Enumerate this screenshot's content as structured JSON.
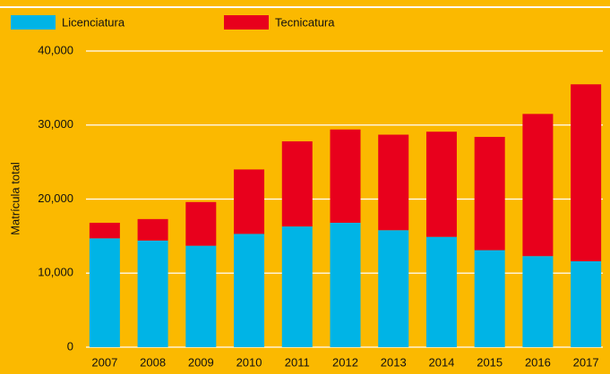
{
  "chart_data": {
    "type": "stacked_bar",
    "ylabel": "Matrícula total",
    "categories": [
      "2007",
      "2008",
      "2009",
      "2010",
      "2011",
      "2012",
      "2013",
      "2014",
      "2015",
      "2016",
      "2017"
    ],
    "series": [
      {
        "name": "Licenciatura",
        "color": "#00b4e6",
        "values": [
          14700,
          14400,
          13700,
          15300,
          16300,
          16800,
          15800,
          14900,
          13100,
          12300,
          11600
        ]
      },
      {
        "name": "Tecnicatura",
        "color": "#e8001c",
        "values": [
          2100,
          2900,
          5900,
          8700,
          11500,
          12600,
          12900,
          14200,
          15300,
          19200,
          23900
        ]
      }
    ],
    "ylim": [
      0,
      40000
    ],
    "yticks": [
      0,
      {
        "value": 10000,
        "label": "10,000"
      },
      {
        "value": 20000,
        "label": "20,000"
      },
      {
        "value": 30000,
        "label": "30,000"
      },
      {
        "value": 40000,
        "label": "40,000"
      }
    ],
    "grid": true,
    "legend": "top"
  }
}
